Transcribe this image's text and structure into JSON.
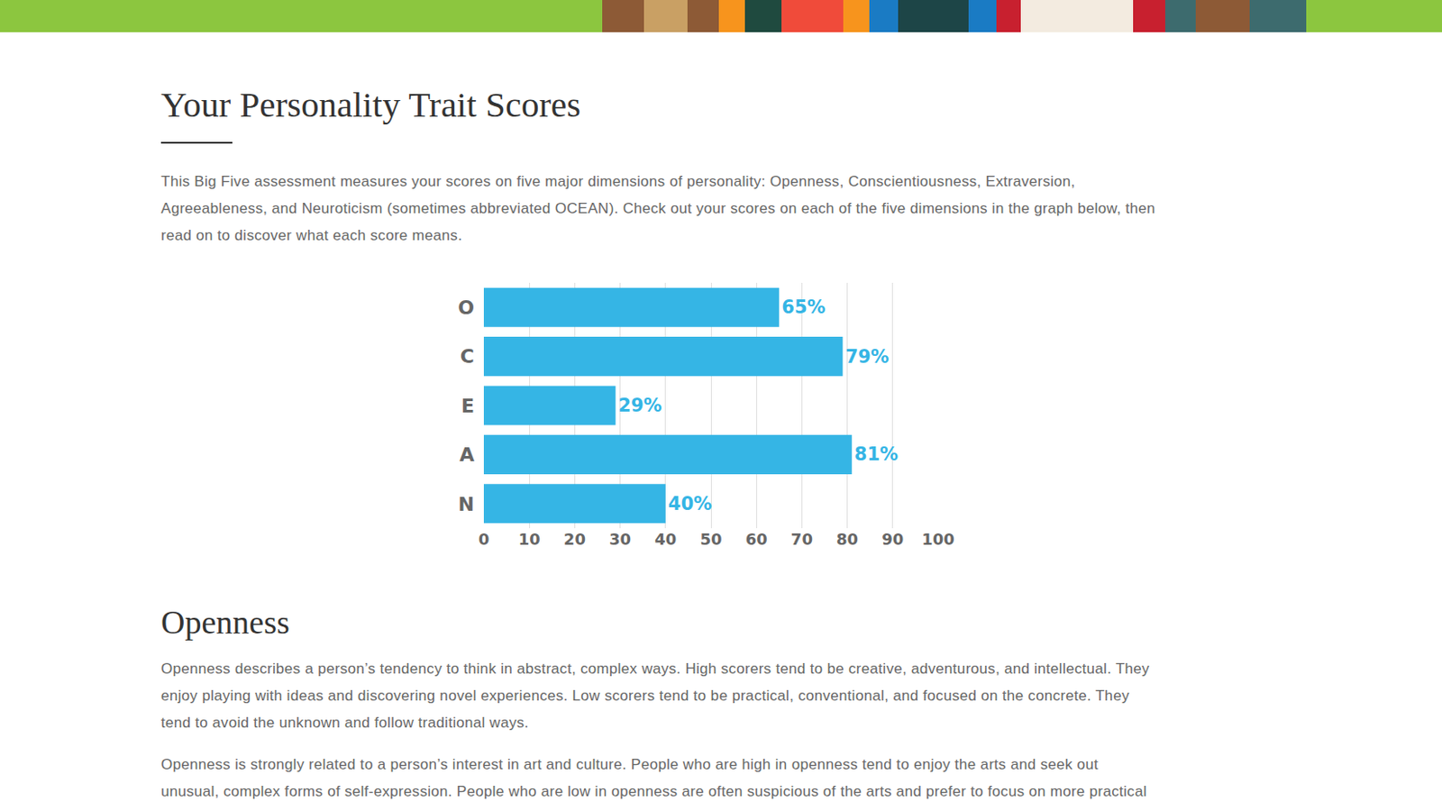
{
  "header": {
    "title": "Your Personality Trait Scores",
    "intro": [
      "This Big Five assessment measures your scores on five major dimensions of personality: Openness, Conscientiousness, Extraversion,",
      "Agreeableness, and Neuroticism (sometimes abbreviated OCEAN). Check out your scores on each of the five dimensions in the graph below, then",
      "read on to discover what each score means."
    ]
  },
  "chart_data": {
    "type": "bar",
    "orientation": "horizontal",
    "categories": [
      "O",
      "C",
      "E",
      "A",
      "N"
    ],
    "values": [
      65,
      79,
      29,
      81,
      40
    ],
    "value_labels": [
      "65%",
      "79%",
      "29%",
      "81%",
      "40%"
    ],
    "data_labels": true,
    "color": "#35b5e5",
    "xlim": [
      0,
      100
    ],
    "xticks": [
      0,
      10,
      20,
      30,
      40,
      50,
      60,
      70,
      80,
      90,
      100
    ],
    "grid": true
  },
  "section": {
    "title": "Openness",
    "paragraphs": [
      [
        "Openness describes a person’s tendency to think in abstract, complex ways. High scorers tend to be creative, adventurous, and intellectual. They",
        "enjoy playing with ideas and discovering novel experiences. Low scorers tend to be practical, conventional, and focused on the concrete. They",
        "tend to avoid the unknown and follow traditional ways."
      ],
      [
        "Openness is strongly related to a person’s interest in art and culture. People who are high in openness tend to enjoy the arts and seek out",
        "unusual, complex forms of self-expression. People who are low in openness are often suspicious of the arts and prefer to focus on more practical"
      ]
    ]
  }
}
